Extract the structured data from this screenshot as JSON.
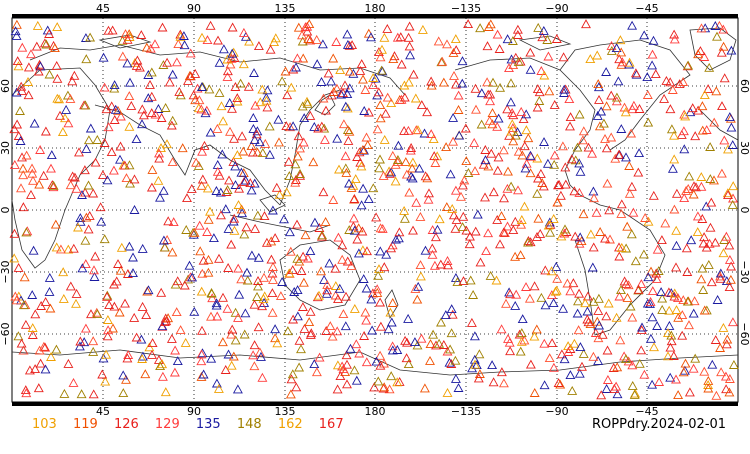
{
  "title": "ROPPdry.2024-02-01",
  "axes": {
    "lon_ticks_top": [
      "45",
      "90",
      "135",
      "180",
      "−135",
      "−90",
      "−45"
    ],
    "lon_ticks_bottom": [
      "45",
      "90",
      "135",
      "180",
      "−135",
      "−90",
      "−45"
    ],
    "lat_ticks": [
      "60",
      "30",
      "0",
      "−30",
      "−60"
    ]
  },
  "legend": [
    {
      "label": "103",
      "color": "#f0a000"
    },
    {
      "label": "119",
      "color": "#f05000"
    },
    {
      "label": "126",
      "color": "#e8201c"
    },
    {
      "label": "129",
      "color": "#ff3b3b"
    },
    {
      "label": "135",
      "color": "#1a1aa0"
    },
    {
      "label": "148",
      "color": "#a08000"
    },
    {
      "label": "162",
      "color": "#f0a000"
    },
    {
      "label": "167",
      "color": "#e8201c"
    }
  ],
  "marker": "triangle-icon"
}
